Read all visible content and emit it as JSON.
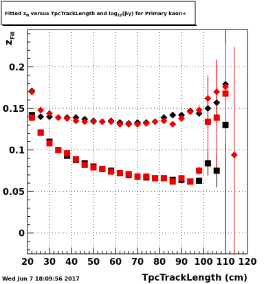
{
  "chart_data": {
    "type": "scatter",
    "title": "Fitted z_N versus TpcTrackLength and log10(βγ) for Primary kaon+",
    "title_parts": [
      "Fitted ",
      "z",
      "N",
      " versus TpcTrackLength and log",
      "10",
      "(βγ) for Primary kaon+"
    ],
    "xlabel": "TpcTrackLength (cm)",
    "ylabel_main": "z",
    "ylabel_sub": "Fit",
    "xlim": [
      20,
      120
    ],
    "ylim": [
      -0.025,
      0.245
    ],
    "xticks": [
      "20",
      "30",
      "40",
      "50",
      "60",
      "70",
      "80",
      "90",
      "100",
      "110",
      "120"
    ],
    "yticks": [
      "0",
      "0.05",
      "0.1",
      "0.15",
      "0.2"
    ],
    "grid": true,
    "timestamp": "Wed Jun  7 18:09:56 2017",
    "colors": {
      "black": "#000000",
      "red": "#ee0000"
    },
    "series": [
      {
        "marker": "diamond",
        "color": "#000000",
        "x": [
          22,
          26,
          30,
          34,
          38,
          42,
          46,
          50,
          54,
          58,
          62,
          66,
          70,
          74,
          78,
          82,
          86,
          90,
          94,
          98,
          102,
          106,
          110
        ],
        "y": [
          0.171,
          0.14,
          0.14,
          0.139,
          0.139,
          0.139,
          0.137,
          0.135,
          0.134,
          0.135,
          0.133,
          0.132,
          0.133,
          0.133,
          0.134,
          0.139,
          0.142,
          0.142,
          0.147,
          0.144,
          0.15,
          0.157,
          0.179
        ],
        "err": [
          0,
          0,
          0,
          0,
          0,
          0,
          0,
          0,
          0,
          0,
          0,
          0,
          0,
          0,
          0,
          0,
          0,
          0,
          0,
          0,
          0.012,
          0.018,
          0.14
        ]
      },
      {
        "marker": "diamond",
        "color": "#ee0000",
        "x": [
          22,
          26,
          30,
          34,
          38,
          42,
          46,
          50,
          54,
          58,
          62,
          66,
          70,
          74,
          78,
          82,
          86,
          90,
          94,
          98,
          102,
          106,
          110,
          114
        ],
        "y": [
          0.17,
          0.148,
          0.144,
          0.139,
          0.138,
          0.135,
          0.134,
          0.134,
          0.134,
          0.134,
          0.131,
          0.131,
          0.131,
          0.132,
          0.134,
          0.135,
          0.131,
          0.138,
          0.146,
          0.148,
          0.162,
          0.17,
          0.176,
          0.094
        ],
        "err": [
          0,
          0,
          0,
          0,
          0,
          0,
          0,
          0,
          0,
          0,
          0,
          0,
          0,
          0,
          0,
          0,
          0,
          0,
          0,
          0.006,
          0.026,
          0.038,
          0.1,
          0.13
        ]
      },
      {
        "marker": "square",
        "color": "#000000",
        "x": [
          22,
          26,
          30,
          34,
          38,
          42,
          46,
          50,
          54,
          58,
          62,
          66,
          70,
          74,
          78,
          82,
          86,
          90,
          94,
          98,
          102,
          106,
          110
        ],
        "y": [
          0.142,
          0.121,
          0.11,
          0.1,
          0.093,
          0.088,
          0.084,
          0.08,
          0.077,
          0.075,
          0.072,
          0.07,
          0.068,
          0.067,
          0.066,
          0.066,
          0.064,
          0.064,
          0.062,
          0.063,
          0.084,
          0.075,
          0.13
        ],
        "err": [
          0,
          0,
          0,
          0,
          0,
          0,
          0,
          0,
          0,
          0,
          0,
          0,
          0,
          0,
          0,
          0,
          0,
          0,
          0,
          0,
          0.015,
          0.02,
          0.21
        ]
      },
      {
        "marker": "square",
        "color": "#ee0000",
        "x": [
          22,
          26,
          30,
          34,
          38,
          42,
          46,
          50,
          54,
          58,
          62,
          66,
          70,
          74,
          78,
          82,
          86,
          90,
          94,
          98,
          102,
          106,
          110
        ],
        "y": [
          0.139,
          0.121,
          0.108,
          0.1,
          0.096,
          0.089,
          0.082,
          0.079,
          0.077,
          0.074,
          0.072,
          0.071,
          0.068,
          0.068,
          0.066,
          0.066,
          0.062,
          0.066,
          0.062,
          0.075,
          0.134,
          0.139,
          0.168
        ],
        "err": [
          0,
          0,
          0,
          0,
          0,
          0,
          0,
          0,
          0,
          0,
          0,
          0,
          0,
          0,
          0,
          0,
          0,
          0,
          0,
          0.005,
          0.056,
          0.07,
          0.06
        ]
      }
    ]
  }
}
